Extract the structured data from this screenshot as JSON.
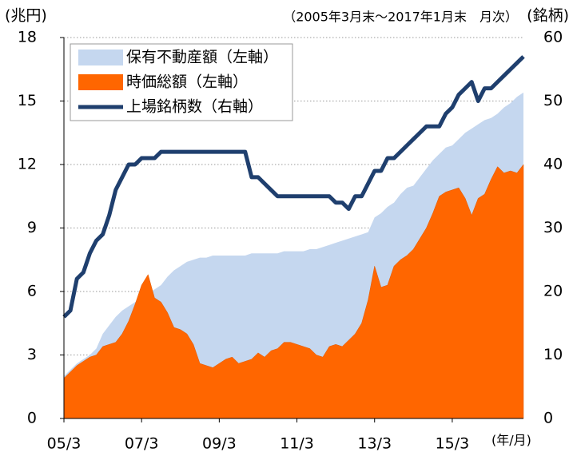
{
  "chart_data": {
    "type": "area_line",
    "subtitle": "（2005年3月末～2017年1月末　月次）",
    "y_axis_label": "(兆円)",
    "y2_axis_label": "(銘柄)",
    "x_axis_label": "(年/月)",
    "categories": [
      "05/3",
      null,
      null,
      null,
      null,
      null,
      null,
      null,
      null,
      null,
      null,
      null,
      "07/3",
      null,
      null,
      null,
      null,
      null,
      null,
      null,
      null,
      null,
      null,
      null,
      "09/3",
      null,
      null,
      null,
      null,
      null,
      null,
      null,
      null,
      null,
      null,
      null,
      "11/3",
      null,
      null,
      null,
      null,
      null,
      null,
      null,
      null,
      null,
      null,
      null,
      "13/3",
      null,
      null,
      null,
      null,
      null,
      null,
      null,
      null,
      null,
      null,
      null,
      "15/3",
      null,
      null,
      null,
      null,
      null,
      null,
      null,
      null,
      null,
      null,
      null
    ],
    "series": [
      {
        "name": "保有不動産額（左軸）",
        "kind": "area",
        "color": "#c5d7ef",
        "values": [
          2.0,
          2.3,
          2.6,
          2.8,
          3.0,
          3.3,
          4.0,
          4.4,
          4.8,
          5.1,
          5.3,
          5.5,
          5.7,
          5.9,
          6.1,
          6.3,
          6.7,
          7.0,
          7.2,
          7.4,
          7.5,
          7.6,
          7.6,
          7.7,
          7.7,
          7.7,
          7.7,
          7.7,
          7.7,
          7.8,
          7.8,
          7.8,
          7.8,
          7.8,
          7.9,
          7.9,
          7.9,
          7.9,
          8.0,
          8.0,
          8.1,
          8.2,
          8.3,
          8.4,
          8.5,
          8.6,
          8.7,
          8.8,
          9.5,
          9.7,
          10.0,
          10.2,
          10.6,
          10.9,
          11.0,
          11.4,
          11.8,
          12.2,
          12.5,
          12.8,
          12.9,
          13.2,
          13.5,
          13.7,
          13.9,
          14.1,
          14.2,
          14.4,
          14.7,
          14.9,
          15.2,
          15.4
        ]
      },
      {
        "name": "時価総額（左軸）",
        "kind": "area",
        "color": "#ff6600",
        "values": [
          1.9,
          2.2,
          2.5,
          2.7,
          2.9,
          3.0,
          3.4,
          3.5,
          3.6,
          4.0,
          4.6,
          5.4,
          6.3,
          6.8,
          5.7,
          5.5,
          5.0,
          4.3,
          4.2,
          4.0,
          3.5,
          2.6,
          2.5,
          2.4,
          2.6,
          2.8,
          2.9,
          2.6,
          2.7,
          2.8,
          3.1,
          2.9,
          3.2,
          3.3,
          3.6,
          3.6,
          3.5,
          3.4,
          3.3,
          3.0,
          2.9,
          3.4,
          3.5,
          3.4,
          3.7,
          4.0,
          4.5,
          5.6,
          7.2,
          6.2,
          6.3,
          7.2,
          7.5,
          7.7,
          8.0,
          8.5,
          9.0,
          9.7,
          10.5,
          10.7,
          10.8,
          10.9,
          10.4,
          9.6,
          10.4,
          10.6,
          11.3,
          11.9,
          11.6,
          11.7,
          11.6,
          12.0
        ]
      },
      {
        "name": "上場銘柄数（右軸）",
        "kind": "line",
        "axis": "y2",
        "color": "#1f3f6e",
        "values": [
          16,
          17,
          22,
          23,
          26,
          28,
          29,
          32,
          36,
          38,
          40,
          40,
          41,
          41,
          41,
          42,
          42,
          42,
          42,
          42,
          42,
          42,
          42,
          42,
          42,
          42,
          42,
          42,
          42,
          38,
          38,
          37,
          36,
          35,
          35,
          35,
          35,
          35,
          35,
          35,
          35,
          35,
          34,
          34,
          33,
          35,
          35,
          37,
          39,
          39,
          41,
          41,
          42,
          43,
          44,
          45,
          46,
          46,
          46,
          48,
          49,
          51,
          52,
          53,
          50,
          52,
          52,
          53,
          54,
          55,
          56,
          57
        ]
      }
    ],
    "ylim": [
      0,
      18
    ],
    "yticks": [
      0,
      3,
      6,
      9,
      12,
      15,
      18
    ],
    "y2lim": [
      0,
      60
    ],
    "y2ticks": [
      0,
      10,
      20,
      30,
      40,
      50,
      60
    ],
    "grid": true,
    "legend": "upper left"
  }
}
